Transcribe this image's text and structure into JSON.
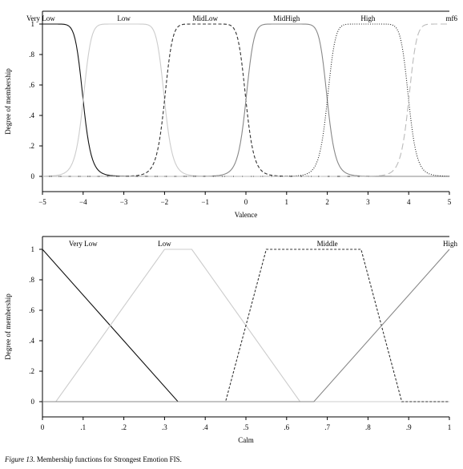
{
  "caption": {
    "figure_label": "Figure 13.",
    "text": " Membership functions for Strongest Emotion FIS."
  },
  "chart_data": [
    {
      "type": "line",
      "chart_kind": "fuzzy-membership",
      "xlabel": "Valence",
      "ylabel": "Degree of membership",
      "xlim": [
        -5,
        5
      ],
      "ylim": [
        0,
        1
      ],
      "xticks": [
        -5,
        -4,
        -3,
        -2,
        -1,
        0,
        1,
        2,
        3,
        4,
        5
      ],
      "xtick_labels": [
        "−5",
        "−4",
        "−3",
        "−2",
        "−1",
        "0",
        "1",
        "2",
        "3",
        "4",
        "5"
      ],
      "yticks": [
        0,
        0.2,
        0.4,
        0.6,
        0.8,
        1
      ],
      "ytick_labels": [
        "0",
        ".2",
        ".4",
        ".6",
        ".8",
        "1"
      ],
      "grid": false,
      "series": [
        {
          "name": "Very Low",
          "mf": "gbell-left",
          "center": -5,
          "halfwidth": 1,
          "slope": 5,
          "color": "#111111",
          "dash": "",
          "label_x": -5
        },
        {
          "name": "Low",
          "mf": "gbell",
          "center": -3,
          "halfwidth": 1,
          "slope": 5,
          "color": "#cccccc",
          "dash": "",
          "label_x": -3
        },
        {
          "name": "MidLow",
          "mf": "gbell",
          "center": -1,
          "halfwidth": 1,
          "slope": 5,
          "color": "#333333",
          "dash": "4,2.5",
          "label_x": -1
        },
        {
          "name": "MidHigh",
          "mf": "gbell",
          "center": 1,
          "halfwidth": 1,
          "slope": 5,
          "color": "#888888",
          "dash": "",
          "label_x": 1
        },
        {
          "name": "High",
          "mf": "gbell",
          "center": 3,
          "halfwidth": 1,
          "slope": 5,
          "color": "#222222",
          "dash": "1,1.8",
          "label_x": 3
        },
        {
          "name": "mf6",
          "mf": "gbell-right",
          "center": 5,
          "halfwidth": 1,
          "slope": 5,
          "color": "#bbbbbb",
          "dash": "8,4",
          "label_x": 5
        }
      ]
    },
    {
      "type": "line",
      "chart_kind": "fuzzy-membership",
      "xlabel": "Calm",
      "ylabel": "Degree of membership",
      "xlim": [
        0,
        1
      ],
      "ylim": [
        0,
        1
      ],
      "xticks": [
        0,
        0.1,
        0.2,
        0.3,
        0.4,
        0.5,
        0.6,
        0.7,
        0.8,
        0.9,
        1
      ],
      "xtick_labels": [
        "0",
        ".1",
        ".2",
        ".3",
        ".4",
        ".5",
        ".6",
        ".7",
        ".8",
        ".9",
        "1"
      ],
      "yticks": [
        0,
        0.2,
        0.4,
        0.6,
        0.8,
        1
      ],
      "ytick_labels": [
        "0",
        ".2",
        ".4",
        ".6",
        ".8",
        "1"
      ],
      "grid": false,
      "series": [
        {
          "name": "Very Low",
          "mf": "trap",
          "points": [
            [
              0,
              1
            ],
            [
              0.333,
              0
            ]
          ],
          "color": "#111111",
          "dash": "",
          "label_x": 0.1
        },
        {
          "name": "Low",
          "mf": "trap",
          "points": [
            [
              0.033,
              0
            ],
            [
              0.3,
              1
            ],
            [
              0.367,
              1
            ],
            [
              0.633,
              0
            ]
          ],
          "color": "#cccccc",
          "dash": "",
          "label_x": 0.3
        },
        {
          "name": "Middle",
          "mf": "trap",
          "points": [
            [
              0.45,
              0
            ],
            [
              0.55,
              1
            ],
            [
              0.783,
              1
            ],
            [
              0.883,
              0
            ]
          ],
          "color": "#333333",
          "dash": "3,2",
          "label_x": 0.7
        },
        {
          "name": "High",
          "mf": "trap",
          "points": [
            [
              0.667,
              0
            ],
            [
              1,
              1
            ]
          ],
          "color": "#888888",
          "dash": "",
          "label_x": 1
        }
      ]
    }
  ]
}
